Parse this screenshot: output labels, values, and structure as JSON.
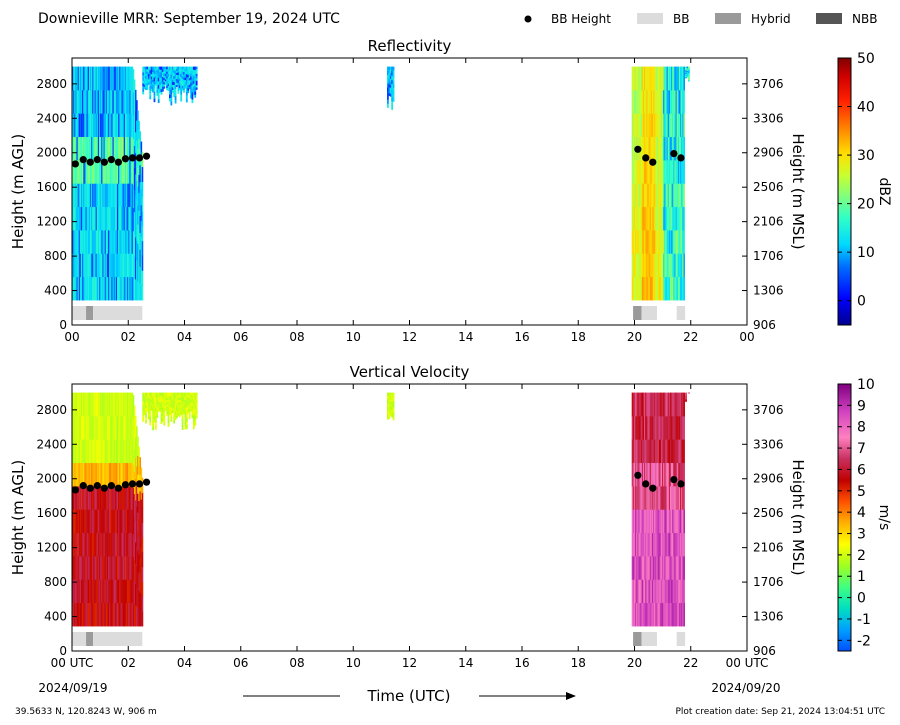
{
  "header": {
    "title": "Downieville MRR:  September 19, 2024 UTC",
    "legend": [
      {
        "label": "BB Height",
        "kind": "dot",
        "color": "#000000"
      },
      {
        "label": "BB",
        "kind": "box",
        "color": "#dcdcdc"
      },
      {
        "label": "Hybrid",
        "kind": "box",
        "color": "#9a9a9a"
      },
      {
        "label": "NBB",
        "kind": "box",
        "color": "#555555"
      }
    ]
  },
  "footer": {
    "coords": "39.5633 N, 120.8243 W, 906 m",
    "created": "Plot creation date: Sep 21, 2024 13:04:51 UTC",
    "xlabel": "Time (UTC)",
    "date_start": "2024/09/19",
    "date_end": "2024/09/20"
  },
  "chart_data": [
    {
      "type": "heatmap",
      "title": "Reflectivity",
      "xlabel": "",
      "ylabel": "Height (m AGL)",
      "ylabel_right": "Height (m MSL)",
      "xlim": [
        0,
        24
      ],
      "ylim": [
        0,
        3100
      ],
      "x_ticks": [
        "00",
        "02",
        "04",
        "06",
        "08",
        "10",
        "12",
        "14",
        "16",
        "18",
        "20",
        "22",
        "00"
      ],
      "y_ticks": [
        0,
        400,
        800,
        1200,
        1600,
        2000,
        2400,
        2800
      ],
      "y_ticks_right": [
        "906",
        "1306",
        "1706",
        "2106",
        "2506",
        "2906",
        "3306",
        "3706"
      ],
      "colorbar": {
        "label": "dBZ",
        "min": -5,
        "max": 50,
        "ticks": [
          "0",
          "10",
          "20",
          "30",
          "40",
          "50"
        ],
        "tick_values": [
          0,
          10,
          20,
          30,
          40,
          50
        ]
      },
      "precip_segments": [
        {
          "start": 0.0,
          "end": 2.5,
          "top": 3000,
          "kind": "main"
        },
        {
          "start": 2.5,
          "end": 4.4,
          "top": 3000,
          "bottom": 2550,
          "kind": "wisps"
        },
        {
          "start": 11.2,
          "end": 11.45,
          "top": 3000,
          "bottom": 2500,
          "kind": "wisps"
        },
        {
          "start": 19.9,
          "end": 21.75,
          "top": 3000,
          "kind": "main"
        },
        {
          "start": 21.75,
          "end": 21.95,
          "top": 3000,
          "bottom": 2800,
          "kind": "wisps"
        }
      ],
      "bb_height": {
        "x": [
          0.12,
          0.4,
          0.65,
          0.9,
          1.15,
          1.4,
          1.65,
          1.9,
          2.15,
          2.4,
          2.65,
          20.12,
          20.4,
          20.65,
          21.4,
          21.65
        ],
        "y": [
          1870,
          1920,
          1890,
          1920,
          1890,
          1920,
          1890,
          1930,
          1940,
          1940,
          1960,
          2040,
          1940,
          1890,
          1990,
          1940
        ]
      },
      "bb_class": [
        {
          "start": 0.0,
          "end": 0.5,
          "class": "BB"
        },
        {
          "start": 0.5,
          "end": 0.75,
          "class": "Hybrid"
        },
        {
          "start": 0.75,
          "end": 2.5,
          "class": "BB"
        },
        {
          "start": 19.95,
          "end": 20.25,
          "class": "Hybrid"
        },
        {
          "start": 20.25,
          "end": 20.8,
          "class": "BB"
        },
        {
          "start": 21.5,
          "end": 21.8,
          "class": "BB"
        }
      ]
    },
    {
      "type": "heatmap",
      "title": "Vertical Velocity",
      "xlabel": "Time (UTC)",
      "ylabel": "Height (m AGL)",
      "ylabel_right": "Height (m MSL)",
      "xlim": [
        0,
        24
      ],
      "ylim": [
        0,
        3100
      ],
      "x_ticks": [
        "00 UTC",
        "02",
        "04",
        "06",
        "08",
        "10",
        "12",
        "14",
        "16",
        "18",
        "20",
        "22",
        "00 UTC"
      ],
      "y_ticks": [
        0,
        400,
        800,
        1200,
        1600,
        2000,
        2400,
        2800
      ],
      "y_ticks_right": [
        "906",
        "1306",
        "1706",
        "2106",
        "2506",
        "2906",
        "3306",
        "3706"
      ],
      "colorbar": {
        "label": "m/s",
        "min": -2.5,
        "max": 10,
        "ticks": [
          "-2",
          "-1",
          "0",
          "1",
          "2",
          "3",
          "4",
          "5",
          "6",
          "7",
          "8",
          "9",
          "10"
        ],
        "tick_values": [
          -2,
          -1,
          0,
          1,
          2,
          3,
          4,
          5,
          6,
          7,
          8,
          9,
          10
        ]
      },
      "precip_segments": [
        {
          "start": 0.0,
          "end": 2.5,
          "top": 3000,
          "kind": "main"
        },
        {
          "start": 2.5,
          "end": 4.4,
          "top": 3000,
          "bottom": 2550,
          "kind": "wisps"
        },
        {
          "start": 11.2,
          "end": 11.45,
          "top": 3000,
          "bottom": 2500,
          "kind": "wisps"
        },
        {
          "start": 19.9,
          "end": 21.75,
          "top": 3000,
          "kind": "main"
        },
        {
          "start": 21.75,
          "end": 21.95,
          "top": 3000,
          "bottom": 2800,
          "kind": "wisps"
        }
      ],
      "bb_height": {
        "x": [
          0.12,
          0.4,
          0.65,
          0.9,
          1.15,
          1.4,
          1.65,
          1.9,
          2.15,
          2.4,
          2.65,
          20.12,
          20.4,
          20.65,
          21.4,
          21.65
        ],
        "y": [
          1870,
          1920,
          1890,
          1920,
          1890,
          1920,
          1890,
          1930,
          1940,
          1940,
          1960,
          2040,
          1940,
          1890,
          1990,
          1940
        ]
      },
      "bb_class": [
        {
          "start": 0.0,
          "end": 0.5,
          "class": "BB"
        },
        {
          "start": 0.5,
          "end": 0.75,
          "class": "Hybrid"
        },
        {
          "start": 0.75,
          "end": 2.5,
          "class": "BB"
        },
        {
          "start": 19.95,
          "end": 20.25,
          "class": "Hybrid"
        },
        {
          "start": 20.25,
          "end": 20.8,
          "class": "BB"
        },
        {
          "start": 21.5,
          "end": 21.8,
          "class": "BB"
        }
      ]
    }
  ]
}
